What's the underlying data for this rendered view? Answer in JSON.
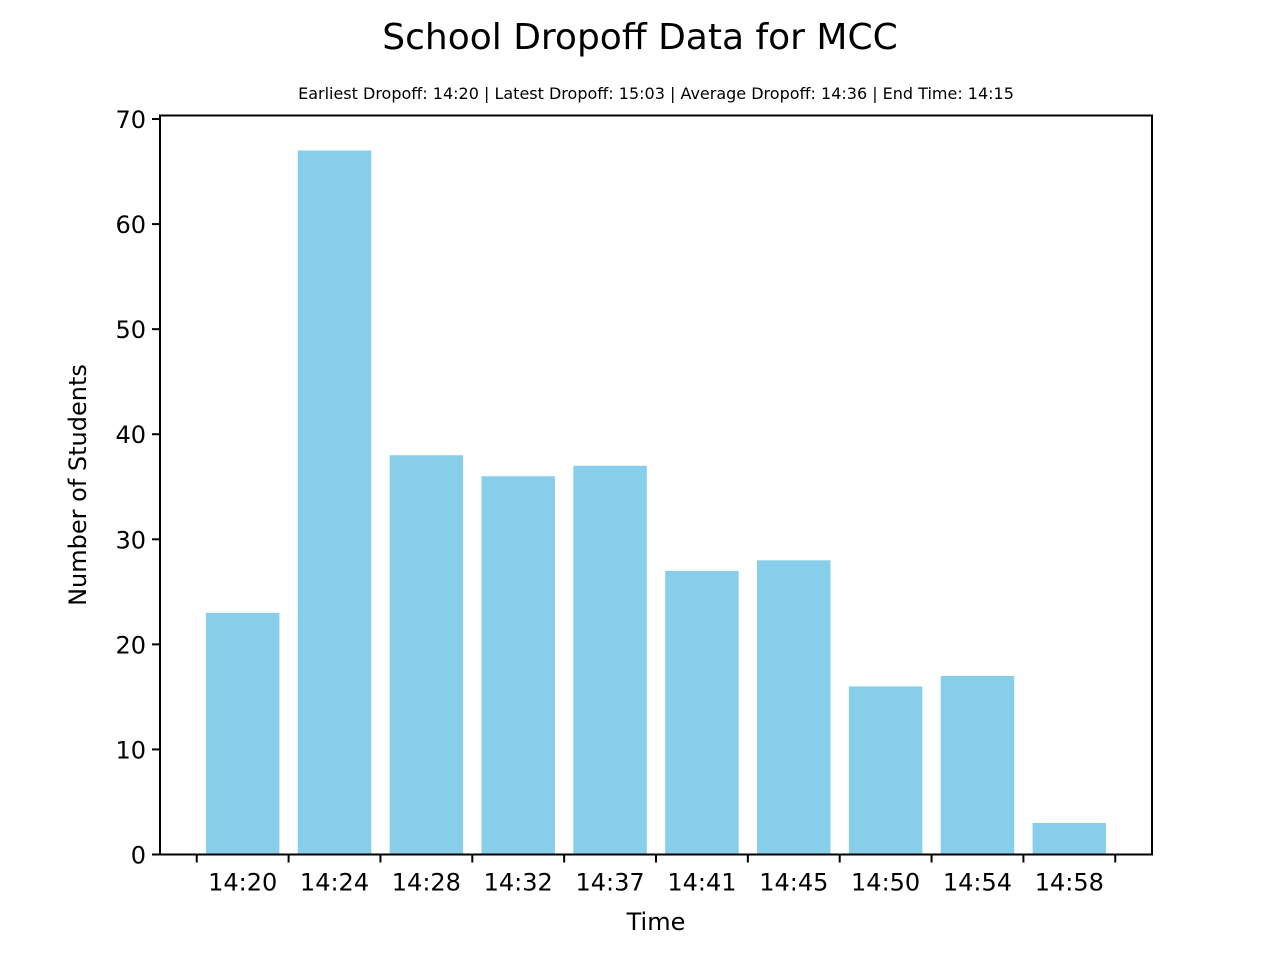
{
  "chart_data": {
    "type": "bar",
    "title": "School Dropoff Data for MCC",
    "subtitle": "Earliest Dropoff: 14:20 | Latest Dropoff: 15:03 | Average Dropoff: 14:36 | End Time: 14:15",
    "xlabel": "Time",
    "ylabel": "Number of Students",
    "categories": [
      "14:20",
      "14:24",
      "14:28",
      "14:32",
      "14:37",
      "14:41",
      "14:45",
      "14:50",
      "14:54",
      "14:58"
    ],
    "values": [
      23,
      67,
      38,
      36,
      37,
      27,
      28,
      16,
      17,
      3
    ],
    "ylim": [
      0,
      70
    ],
    "yticks": [
      0,
      10,
      20,
      30,
      40,
      50,
      60,
      70
    ],
    "grid": false,
    "legend": "none",
    "bar_color": "#87ceeb"
  }
}
